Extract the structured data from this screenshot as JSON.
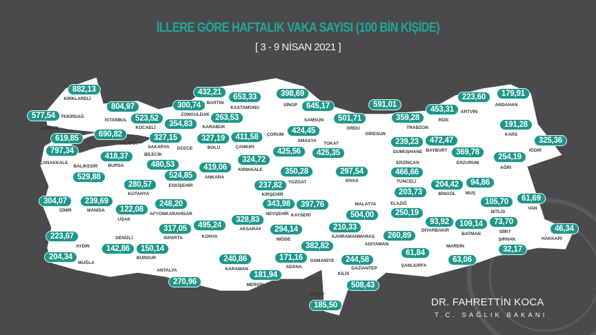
{
  "title": "İLLERE GÖRE HAFTALIK VAKA SAYISI (100 BİN KİŞİDE)",
  "subtitle": "[ 3 - 9 NİSAN 2021 ]",
  "signature": {
    "name": "DR. FAHRETTİN KOCA",
    "role": "T.C. SAĞLIK BAKANI"
  },
  "colors": {
    "background": "#4a4a4c",
    "land": "#ffffff",
    "accent": "#1d978b",
    "title": "#1fa79a"
  },
  "provinces": [
    {
      "name": "KIRKLARELİ",
      "value": "882,13"
    },
    {
      "name": "EDİRNE",
      "value": "577,54"
    },
    {
      "name": "TEKİRDAĞ",
      "value": "619,85"
    },
    {
      "name": "İSTANBUL",
      "value": "804,97"
    },
    {
      "name": "YALOVA",
      "value": "690,82"
    },
    {
      "name": "KOCAELİ",
      "value": "523,52"
    },
    {
      "name": "ÇANAKKALE",
      "value": "797,34"
    },
    {
      "name": "SAKARYA",
      "value": "327,15"
    },
    {
      "name": "DÜZCE",
      "value": "354,83"
    },
    {
      "name": "ZONGULDAK",
      "value": "300,74"
    },
    {
      "name": "BARTIN",
      "value": "432,21"
    },
    {
      "name": "KARABÜK",
      "value": "263,53"
    },
    {
      "name": "KASTAMONU",
      "value": "653,33"
    },
    {
      "name": "SİNOP",
      "value": "398,69"
    },
    {
      "name": "SAMSUN",
      "value": "645,17"
    },
    {
      "name": "ORDU",
      "value": "501,71"
    },
    {
      "name": "GİRESUN",
      "value": "591,01"
    },
    {
      "name": "TRABZON",
      "value": "359,28"
    },
    {
      "name": "RİZE",
      "value": "453,31"
    },
    {
      "name": "ARTVİN",
      "value": "223,60"
    },
    {
      "name": "ARDAHAN",
      "value": "179,91"
    },
    {
      "name": "KARS",
      "value": "191,28"
    },
    {
      "name": "IĞDIR",
      "value": "325,36"
    },
    {
      "name": "AĞRI",
      "value": "254,19"
    },
    {
      "name": "ERZURUM",
      "value": "369,78"
    },
    {
      "name": "BAYBURT",
      "value": "472,47"
    },
    {
      "name": "GÜMÜŞHANE",
      "value": "239,23"
    },
    {
      "name": "ERZİNCAN",
      "value": "466,66"
    },
    {
      "name": "TUNCELİ",
      "value": "203,73"
    },
    {
      "name": "BİNGÖL",
      "value": "204,42"
    },
    {
      "name": "MUŞ",
      "value": "94,86"
    },
    {
      "name": "BİTLİS",
      "value": "105,70"
    },
    {
      "name": "VAN",
      "value": "61,69"
    },
    {
      "name": "ELAZIĞ",
      "value": "250,19"
    },
    {
      "name": "MALATYA",
      "value": "504,00"
    },
    {
      "name": "DİYARBAKIR",
      "value": "93,92"
    },
    {
      "name": "BATMAN",
      "value": "109,14"
    },
    {
      "name": "SİİRT",
      "value": "73,70"
    },
    {
      "name": "ŞIRNAK",
      "value": "32,17"
    },
    {
      "name": "HAKKARİ",
      "value": "46,34"
    },
    {
      "name": "MARDİN",
      "value": "63,06"
    },
    {
      "name": "ŞANLIURFA",
      "value": "61,84"
    },
    {
      "name": "ADIYAMAN",
      "value": "260,89"
    },
    {
      "name": "GAZİANTEP",
      "value": "244,58"
    },
    {
      "name": "KİLİS",
      "value": "508,43"
    },
    {
      "name": "HATAY",
      "value": "185,50"
    },
    {
      "name": "OSMANİYE",
      "value": "382,82"
    },
    {
      "name": "ADANA",
      "value": "171,16"
    },
    {
      "name": "KAHRAMANMARAŞ",
      "value": "210,33"
    },
    {
      "name": "KAYSERİ",
      "value": "397,76"
    },
    {
      "name": "NEVŞEHİR",
      "value": "343,98"
    },
    {
      "name": "KIRŞEHİR",
      "value": "237,82"
    },
    {
      "name": "NİĞDE",
      "value": "294,14"
    },
    {
      "name": "AKSARAY",
      "value": "328,83"
    },
    {
      "name": "KONYA",
      "value": "495,24"
    },
    {
      "name": "KARAMAN",
      "value": "240,86"
    },
    {
      "name": "MERSİN",
      "value": "181,94"
    },
    {
      "name": "YOZGAT",
      "value": "350,28"
    },
    {
      "name": "KIRIKKALE",
      "value": "324,72"
    },
    {
      "name": "ÇANKIRI",
      "value": "411,58"
    },
    {
      "name": "ÇORUM",
      "value": "425,56"
    },
    {
      "name": "AMASYA",
      "value": "424,45"
    },
    {
      "name": "TOKAT",
      "value": "425,35"
    },
    {
      "name": "SİVAS",
      "value": "297,54"
    },
    {
      "name": "ANKARA",
      "value": "419,06"
    },
    {
      "name": "BOLU",
      "value": "327,19"
    },
    {
      "name": "ESKİŞEHİR",
      "value": "524,85"
    },
    {
      "name": "BİLECİK",
      "value": "480,53"
    },
    {
      "name": "BURSA",
      "value": "418,37"
    },
    {
      "name": "BALIKESİR",
      "value": "529,88"
    },
    {
      "name": "KÜTAHYA",
      "value": "280,57"
    },
    {
      "name": "İZMİR",
      "value": "304,07"
    },
    {
      "name": "MANİSA",
      "value": "239,69"
    },
    {
      "name": "UŞAK",
      "value": "122,08"
    },
    {
      "name": "AFYONKARAHİSAR",
      "value": "248,20"
    },
    {
      "name": "ISPARTA",
      "value": "317,05"
    },
    {
      "name": "DENİZLİ",
      "value": "142,86"
    },
    {
      "name": "BURDUR",
      "value": "150,14"
    },
    {
      "name": "AYDIN",
      "value": "223,67"
    },
    {
      "name": "MUĞLA",
      "value": "204,34"
    },
    {
      "name": "ANTALYA",
      "value": "270,96"
    }
  ]
}
